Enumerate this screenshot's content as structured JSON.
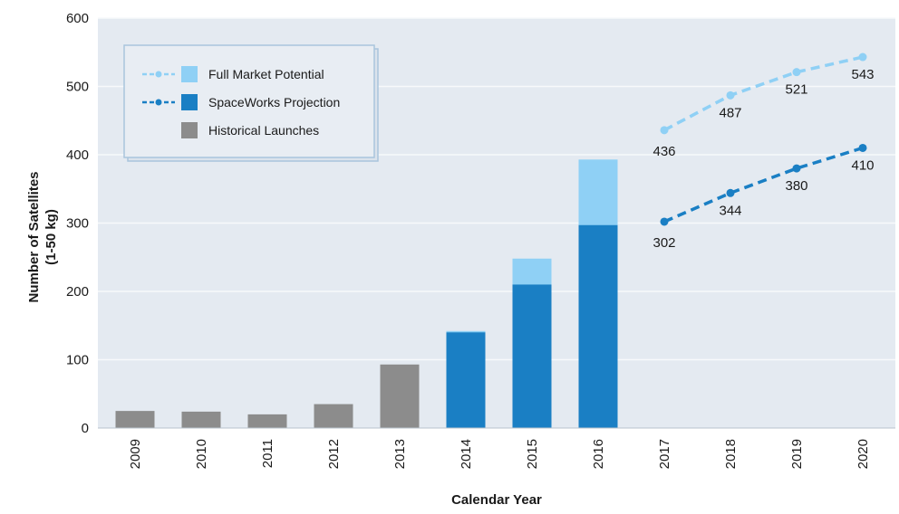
{
  "chart_data": {
    "type": "bar",
    "xlabel": "Calendar Year",
    "ylabel_lines": [
      "Number of Satellites",
      "(1-50 kg)"
    ],
    "ylim": [
      0,
      600
    ],
    "yticks": [
      0,
      100,
      200,
      300,
      400,
      500,
      600
    ],
    "categories": [
      "2009",
      "2010",
      "2011",
      "2012",
      "2013",
      "2014",
      "2015",
      "2016",
      "2017",
      "2018",
      "2019",
      "2020"
    ],
    "bar_series": [
      {
        "name": "Historical Launches",
        "color": "#8c8c8c",
        "values": [
          25,
          24,
          20,
          35,
          93,
          null,
          null,
          null,
          null,
          null,
          null,
          null
        ]
      },
      {
        "name": "SpaceWorks Projection",
        "color": "#1a7fc4",
        "values": [
          null,
          null,
          null,
          null,
          null,
          140,
          210,
          297,
          null,
          null,
          null,
          null
        ]
      },
      {
        "name": "Full Market Potential",
        "color": "#8fd0f5",
        "values": [
          null,
          null,
          null,
          null,
          null,
          142,
          248,
          393,
          null,
          null,
          null,
          null
        ]
      }
    ],
    "line_series": [
      {
        "name": "Full Market Potential",
        "color": "#8fd0f5",
        "x": [
          "2017",
          "2018",
          "2019",
          "2020"
        ],
        "values": [
          436,
          487,
          521,
          543
        ],
        "labels": [
          "436",
          "487",
          "521",
          "543"
        ]
      },
      {
        "name": "SpaceWorks Projection",
        "color": "#1a7fc4",
        "x": [
          "2017",
          "2018",
          "2019",
          "2020"
        ],
        "values": [
          302,
          344,
          380,
          410
        ],
        "labels": [
          "302",
          "344",
          "380",
          "410"
        ]
      }
    ],
    "legend": {
      "placement": "top-left",
      "entries": [
        {
          "name": "Full Market Potential",
          "color": "#8fd0f5",
          "has_line": true
        },
        {
          "name": "SpaceWorks Projection",
          "color": "#1a7fc4",
          "has_line": true
        },
        {
          "name": "Historical Launches",
          "color": "#8c8c8c",
          "has_line": false
        }
      ]
    },
    "grid": true,
    "plot_background": "#e4eaf1"
  }
}
